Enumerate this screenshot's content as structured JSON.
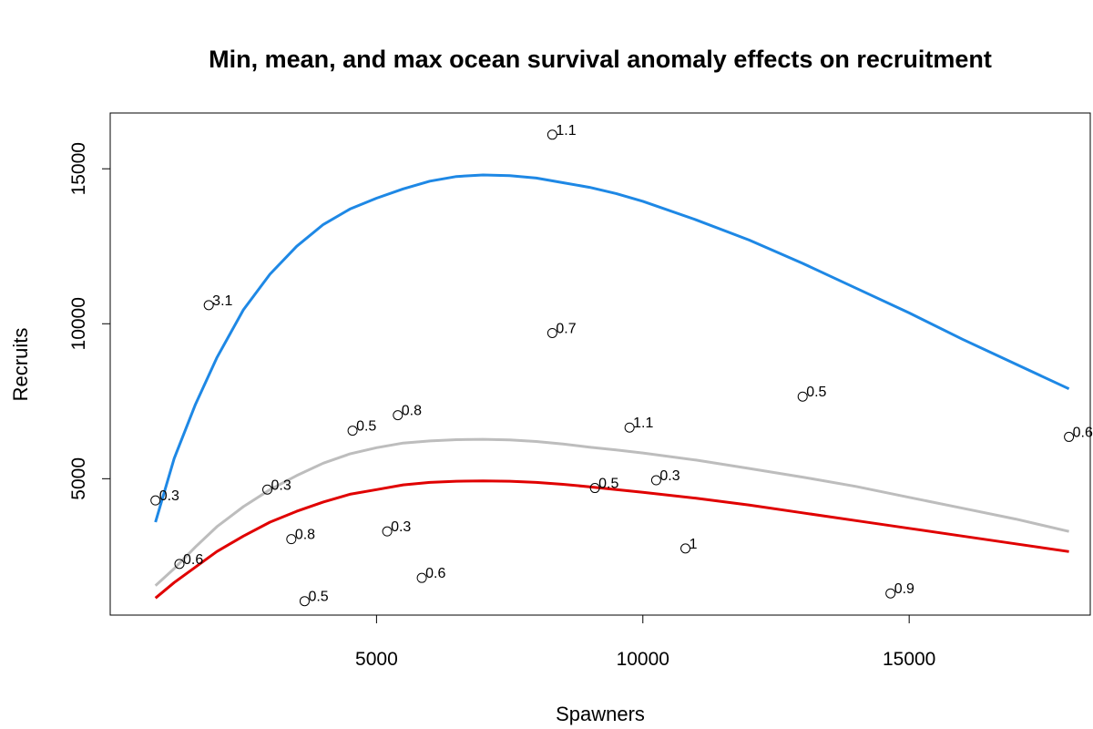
{
  "chart_data": {
    "type": "scatter",
    "title": "Min, mean, and max ocean survival anomaly effects on recruitment",
    "xlabel": "Spawners",
    "ylabel": "Recruits",
    "xlim": [
      0,
      18400
    ],
    "ylim": [
      600,
      16800
    ],
    "x_ticks": [
      5000,
      10000,
      15000
    ],
    "x_tick_labels": [
      "5000",
      "10000",
      "15000"
    ],
    "y_ticks": [
      5000,
      10000,
      15000
    ],
    "y_tick_labels": [
      "5000",
      "10000",
      "15000"
    ],
    "grid": false,
    "points": [
      {
        "x": 8300,
        "y": 16100,
        "label": "1.1"
      },
      {
        "x": 1850,
        "y": 10600,
        "label": "3.1"
      },
      {
        "x": 8300,
        "y": 9700,
        "label": "0.7"
      },
      {
        "x": 13000,
        "y": 7650,
        "label": "0.5"
      },
      {
        "x": 5400,
        "y": 7050,
        "label": "0.8"
      },
      {
        "x": 4550,
        "y": 6550,
        "label": "0.5"
      },
      {
        "x": 9750,
        "y": 6650,
        "label": "1.1"
      },
      {
        "x": 18000,
        "y": 6350,
        "label": "0.6"
      },
      {
        "x": 850,
        "y": 4300,
        "label": "0.3"
      },
      {
        "x": 2950,
        "y": 4650,
        "label": "0.3"
      },
      {
        "x": 10250,
        "y": 4950,
        "label": "0.3"
      },
      {
        "x": 9100,
        "y": 4700,
        "label": "0.5"
      },
      {
        "x": 3400,
        "y": 3050,
        "label": "0.8"
      },
      {
        "x": 5200,
        "y": 3300,
        "label": "0.3"
      },
      {
        "x": 10800,
        "y": 2750,
        "label": "1"
      },
      {
        "x": 1300,
        "y": 2250,
        "label": "0.6"
      },
      {
        "x": 5850,
        "y": 1800,
        "label": "0.6"
      },
      {
        "x": 3650,
        "y": 1050,
        "label": "0.5"
      },
      {
        "x": 14650,
        "y": 1300,
        "label": "0.9"
      }
    ],
    "series": [
      {
        "color": "#1E88E5",
        "x": [
          850,
          1200,
          1600,
          2000,
          2500,
          3000,
          3500,
          4000,
          4500,
          5000,
          5500,
          6000,
          6500,
          7000,
          7500,
          8000,
          8500,
          9000,
          9500,
          10000,
          11000,
          12000,
          13000,
          14000,
          15000,
          16000,
          17000,
          18000
        ],
        "values": [
          3600,
          5650,
          7400,
          8900,
          10450,
          11600,
          12500,
          13200,
          13700,
          14050,
          14350,
          14600,
          14750,
          14800,
          14780,
          14700,
          14550,
          14400,
          14200,
          13950,
          13350,
          12700,
          11950,
          11150,
          10350,
          9500,
          8700,
          7900
        ]
      },
      {
        "color": "#BDBDBD",
        "x": [
          850,
          1200,
          1600,
          2000,
          2500,
          3000,
          3500,
          4000,
          4500,
          5000,
          5500,
          6000,
          6500,
          7000,
          7500,
          8000,
          8500,
          9000,
          9500,
          10000,
          11000,
          12000,
          13000,
          14000,
          15000,
          16000,
          17000,
          18000
        ],
        "values": [
          1550,
          2100,
          2800,
          3450,
          4100,
          4650,
          5100,
          5500,
          5800,
          6000,
          6150,
          6220,
          6260,
          6270,
          6250,
          6200,
          6120,
          6020,
          5930,
          5830,
          5600,
          5330,
          5050,
          4750,
          4400,
          4050,
          3700,
          3300
        ]
      },
      {
        "color": "#E00000",
        "x": [
          850,
          1200,
          1600,
          2000,
          2500,
          3000,
          3500,
          4000,
          4500,
          5000,
          5500,
          6000,
          6500,
          7000,
          7500,
          8000,
          8500,
          9000,
          9500,
          10000,
          11000,
          12000,
          13000,
          14000,
          15000,
          16000,
          17000,
          18000
        ],
        "values": [
          1150,
          1650,
          2150,
          2650,
          3150,
          3600,
          3950,
          4250,
          4500,
          4650,
          4800,
          4880,
          4920,
          4930,
          4920,
          4880,
          4820,
          4740,
          4650,
          4560,
          4370,
          4150,
          3900,
          3650,
          3400,
          3150,
          2900,
          2650
        ]
      }
    ]
  }
}
